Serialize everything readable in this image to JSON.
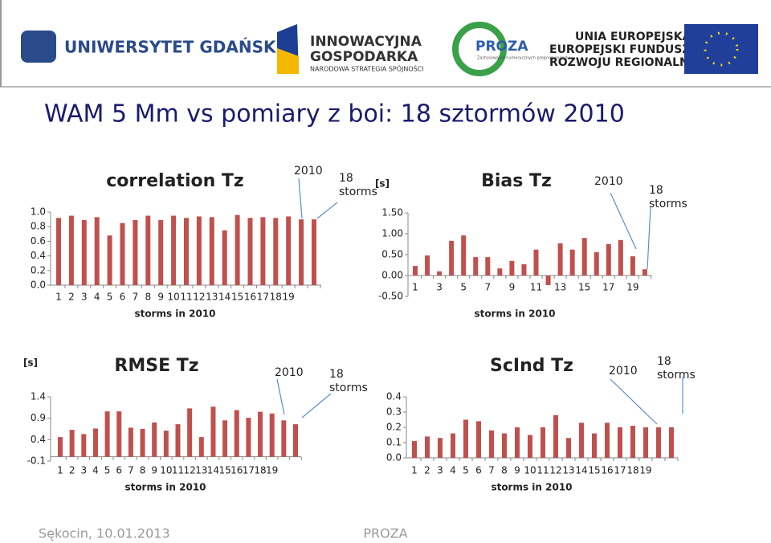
{
  "header": {
    "logos": {
      "ug": "UNIWERSYTET GDAŃSKI",
      "ig_line1": "INNOWACYJNA",
      "ig_line2": "GOSPODARKA",
      "ig_line3": "NARODOWA STRATEGIA SPÓJNOŚCI",
      "proza": "PROZA",
      "proza_sub": "Zastosowanie numerycznych prognoz pogody",
      "ue_line1": "UNIA EUROPEJSKA",
      "ue_line2": "EUROPEJSKI FUNDUSZ",
      "ue_line3": "ROZWOJU REGIONALNEGO"
    }
  },
  "slide_title": "WAM 5 Mm vs pomiary z boi: 18 sztormów 2010",
  "footer": {
    "left": "Sękocin, 10.01.2013",
    "center": "PROZA"
  },
  "chart_data": [
    {
      "type": "bar",
      "title": "correlation Tz",
      "x_axis_title": "storms in 2010",
      "annotations": [
        "2010",
        "18 storms"
      ],
      "color": "#c0504d",
      "categories": [
        "1",
        "2",
        "3",
        "4",
        "5",
        "6",
        "7",
        "8",
        "9",
        "10",
        "11",
        "12",
        "13",
        "14",
        "15",
        "16",
        "17",
        "18",
        "19",
        null,
        null
      ],
      "values": [
        0.92,
        0.95,
        0.89,
        0.93,
        0.68,
        0.85,
        0.89,
        0.95,
        0.89,
        0.95,
        0.92,
        0.94,
        0.93,
        0.75,
        0.96,
        0.92,
        0.93,
        0.92,
        0.94,
        0.9,
        0.9
      ],
      "ylim": [
        0,
        1
      ],
      "yticks": [
        {
          "value": 0,
          "label": "0.0"
        },
        0.2,
        0.4,
        0.6,
        0.8,
        {
          "value": 1,
          "label": "1.0"
        }
      ]
    },
    {
      "type": "bar",
      "title": "Bias Tz",
      "y_axis_unit": "[s]",
      "x_axis_title": "storms in 2010",
      "annotations": [
        "2010",
        "18 storms"
      ],
      "color": "#c0504d",
      "categories": [
        "1",
        null,
        "3",
        null,
        "5",
        null,
        "7",
        null,
        "9",
        null,
        "11",
        null,
        "13",
        null,
        "15",
        null,
        "17",
        null,
        "19",
        null
      ],
      "values": [
        0.23,
        0.48,
        0.1,
        0.83,
        0.96,
        0.44,
        0.44,
        0.17,
        0.35,
        0.27,
        0.62,
        -0.23,
        0.77,
        0.62,
        0.9,
        0.56,
        0.75,
        0.85,
        0.46,
        0.15
      ],
      "ylim": [
        -0.5,
        1.5
      ],
      "yticks": [
        {
          "value": -0.5,
          "label": "-0.50"
        },
        {
          "value": 0,
          "label": "0.00"
        },
        {
          "value": 0.5,
          "label": "0.50"
        },
        {
          "value": 1,
          "label": "1.00"
        },
        {
          "value": 1.5,
          "label": "1.50"
        }
      ]
    },
    {
      "type": "bar",
      "title": "RMSE Tz",
      "y_axis_unit": "[s]",
      "x_axis_title": "storms in 2010",
      "annotations": [
        "2010",
        "18 storms"
      ],
      "color": "#c0504d",
      "categories": [
        "1",
        "2",
        "3",
        "4",
        "5",
        "6",
        "7",
        "8",
        "9",
        "10",
        "11",
        "12",
        "13",
        "14",
        "15",
        "16",
        "17",
        "18",
        "19",
        null,
        null
      ],
      "values": [
        0.46,
        0.63,
        0.53,
        0.66,
        1.06,
        1.06,
        0.68,
        0.65,
        0.8,
        0.61,
        0.76,
        1.13,
        0.46,
        1.17,
        0.85,
        1.09,
        0.91,
        1.05,
        1.01,
        0.85,
        0.76
      ],
      "ylim": [
        -0.1,
        1.4
      ],
      "yticks": [
        -0.1,
        0.4,
        0.9,
        1.4
      ]
    },
    {
      "type": "bar",
      "title": "ScInd Tz",
      "x_axis_title": "storms in 2010",
      "annotations": [
        "2010",
        "18 storms"
      ],
      "color": "#c0504d",
      "categories": [
        "1",
        "2",
        "3",
        "4",
        "5",
        "6",
        "7",
        "8",
        "9",
        "10",
        "11",
        "12",
        "13",
        "14",
        "15",
        "16",
        "17",
        "18",
        "19",
        null,
        null
      ],
      "values": [
        0.11,
        0.14,
        0.13,
        0.16,
        0.25,
        0.24,
        0.18,
        0.16,
        0.2,
        0.15,
        0.2,
        0.28,
        0.13,
        0.23,
        0.16,
        0.23,
        0.2,
        0.21,
        0.2,
        0.2,
        0.2
      ],
      "ylim": [
        0,
        0.4
      ],
      "yticks": [
        {
          "value": 0,
          "label": "0.0"
        },
        0.1,
        0.2,
        0.3,
        0.4
      ]
    }
  ]
}
